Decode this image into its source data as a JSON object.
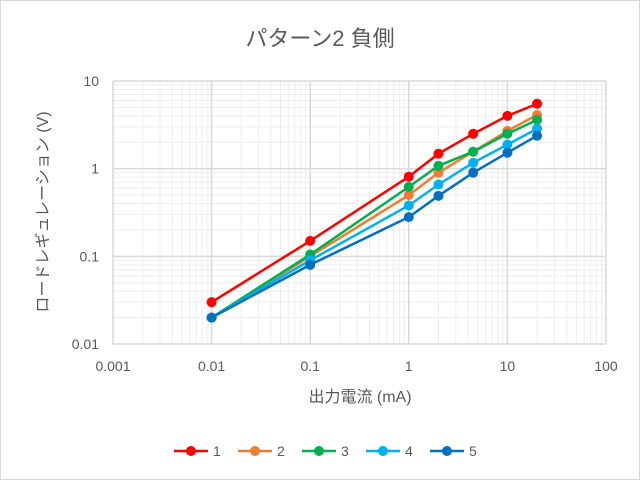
{
  "chart_data": {
    "type": "line",
    "title": "パターン2 負側",
    "xlabel": "出力電流 (mA)",
    "ylabel": "ロードレギュレーション (V)",
    "xscale": "log",
    "yscale": "log",
    "xlim": [
      0.001,
      100
    ],
    "ylim": [
      0.01,
      10
    ],
    "xticks": [
      "0.001",
      "0.01",
      "0.1",
      "1",
      "10",
      "100"
    ],
    "yticks": [
      "0.01",
      "0.1",
      "1",
      "10"
    ],
    "grid": true,
    "legend": "bottom",
    "x": [
      0.01,
      0.1,
      1,
      2,
      4.5,
      10,
      20
    ],
    "series": [
      {
        "name": "1",
        "color": "#ff0000",
        "values": [
          0.03,
          0.15,
          0.81,
          1.48,
          2.5,
          4.0,
          5.5
        ]
      },
      {
        "name": "2",
        "color": "#ed7d31",
        "values": [
          0.02,
          0.1,
          0.5,
          0.9,
          1.56,
          2.7,
          4.1
        ]
      },
      {
        "name": "3",
        "color": "#00b050",
        "values": [
          0.02,
          0.105,
          0.62,
          1.08,
          1.56,
          2.5,
          3.6
        ]
      },
      {
        "name": "4",
        "color": "#00b0f0",
        "values": [
          0.02,
          0.09,
          0.38,
          0.66,
          1.17,
          1.88,
          2.86
        ]
      },
      {
        "name": "5",
        "color": "#0070c0",
        "values": [
          0.02,
          0.08,
          0.28,
          0.49,
          0.9,
          1.52,
          2.38
        ]
      }
    ]
  }
}
